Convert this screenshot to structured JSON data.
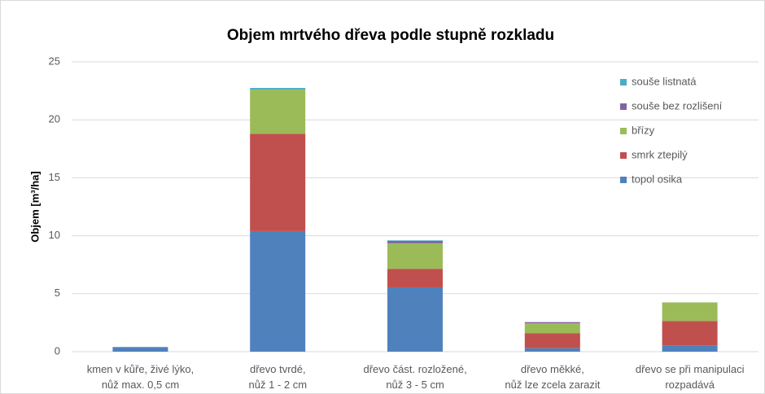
{
  "chart_data": {
    "type": "stacked_bar",
    "title": "Objem mrtvého dřeva podle stupně rozkladu",
    "y_label": "Objem [m³/ha]",
    "categories": [
      "kmen v kůře, živé lýko,\nnůž max. 0,5 cm",
      "dřevo tvrdé,\nnůž 1 - 2 cm",
      "dřevo část. rozložené,\nnůž 3 - 5 cm",
      "dřevo měkké,\nnůž lze zcela zarazit",
      "dřevo se při manipulaci\nrozpadává"
    ],
    "series": [
      {
        "name": "topol osika",
        "color": "#4f81bd",
        "values": [
          0.4,
          10.4,
          5.55,
          0.3,
          0.55
        ]
      },
      {
        "name": "smrk ztepilý",
        "color": "#c0504d",
        "values": [
          0,
          8.4,
          1.6,
          1.3,
          2.1
        ]
      },
      {
        "name": "břízy",
        "color": "#9bbb59",
        "values": [
          0,
          3.8,
          2.2,
          0.85,
          1.6
        ]
      },
      {
        "name": "souše bez rozlišení",
        "color": "#8064a2",
        "values": [
          0,
          0,
          0.2,
          0.1,
          0
        ]
      },
      {
        "name": "souše listnatá",
        "color": "#4bacc6",
        "values": [
          0,
          0.15,
          0.05,
          0,
          0
        ]
      }
    ],
    "ylim": [
      0,
      25
    ],
    "yticks": [
      0,
      5,
      10,
      15,
      20,
      25
    ],
    "grid": true,
    "legend": "right"
  }
}
